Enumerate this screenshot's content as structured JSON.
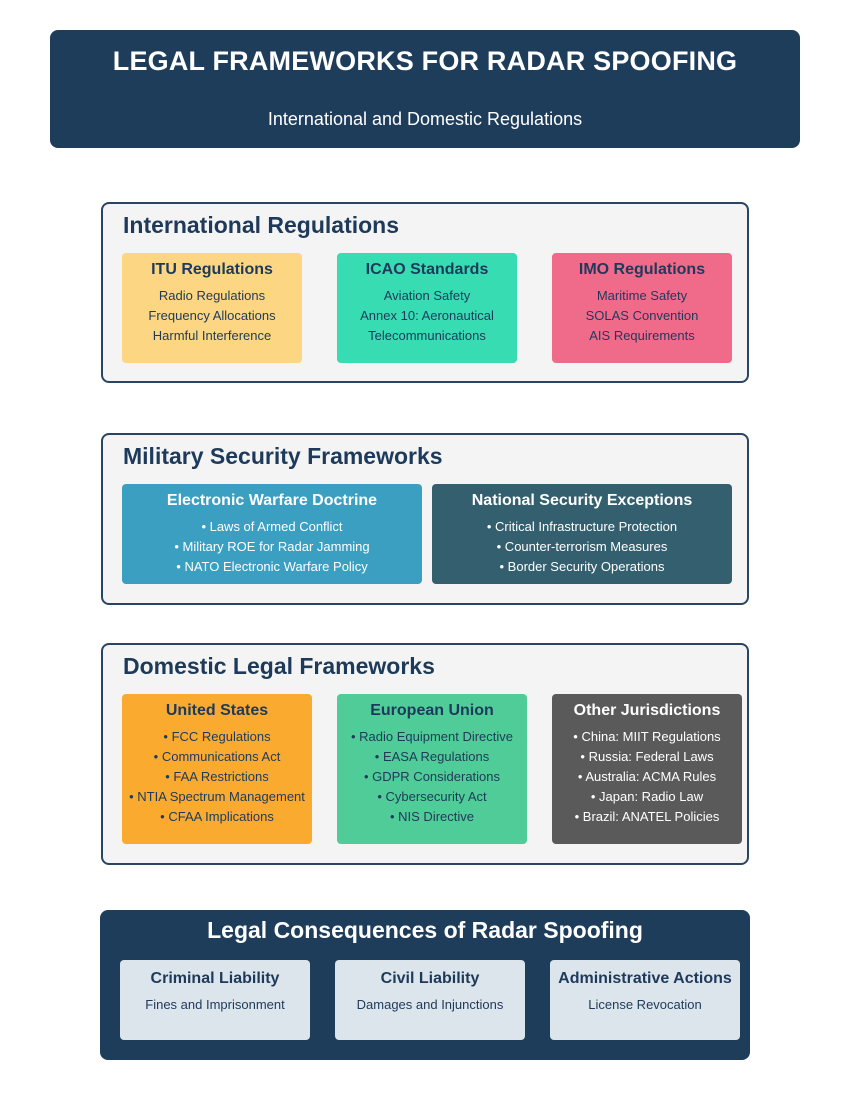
{
  "header": {
    "title": "LEGAL FRAMEWORKS FOR RADAR SPOOFING",
    "subtitle": "International and Domestic Regulations"
  },
  "international": {
    "title": "International Regulations",
    "boxes": [
      {
        "title": "ITU Regulations",
        "items": [
          "Radio Regulations",
          "Frequency Allocations",
          "Harmful Interference"
        ],
        "color": "#fcd683"
      },
      {
        "title": "ICAO Standards",
        "items": [
          "Aviation Safety",
          "Annex 10: Aeronautical",
          "Telecommunications"
        ],
        "color": "#38dcb2"
      },
      {
        "title": "IMO Regulations",
        "items": [
          "Maritime Safety",
          "SOLAS Convention",
          "AIS Requirements"
        ],
        "color": "#f06b8a"
      }
    ]
  },
  "military": {
    "title": "Military Security Frameworks",
    "boxes": [
      {
        "title": "Electronic Warfare Doctrine",
        "items": [
          "• Laws of Armed Conflict",
          "• Military ROE for Radar Jamming",
          "• NATO Electronic Warfare Policy"
        ],
        "color": "#3b9fc2"
      },
      {
        "title": "National Security Exceptions",
        "items": [
          "• Critical Infrastructure Protection",
          "• Counter-terrorism Measures",
          "• Border Security Operations"
        ],
        "color": "#335f6e"
      }
    ]
  },
  "domestic": {
    "title": "Domestic Legal Frameworks",
    "boxes": [
      {
        "title": "United States",
        "items": [
          "• FCC Regulations",
          "• Communications Act",
          "• FAA Restrictions",
          "• NTIA Spectrum Management",
          "• CFAA Implications"
        ],
        "color": "#fbaa30"
      },
      {
        "title": "European Union",
        "items": [
          "• Radio Equipment Directive",
          "• EASA Regulations",
          "• GDPR Considerations",
          "• Cybersecurity Act",
          "• NIS Directive"
        ],
        "color": "#4fcc98"
      },
      {
        "title": "Other Jurisdictions",
        "items": [
          "• China: MIIT Regulations",
          "• Russia: Federal Laws",
          "• Australia: ACMA Rules",
          "• Japan: Radio Law",
          "• Brazil: ANATEL Policies"
        ],
        "color": "#5a5a5a"
      }
    ]
  },
  "consequences": {
    "title": "Legal Consequences of Radar Spoofing",
    "items": [
      {
        "title": "Criminal Liability",
        "desc": "Fines and Imprisonment"
      },
      {
        "title": "Civil Liability",
        "desc": "Damages and Injunctions"
      },
      {
        "title": "Administrative Actions",
        "desc": "License Revocation"
      }
    ]
  }
}
